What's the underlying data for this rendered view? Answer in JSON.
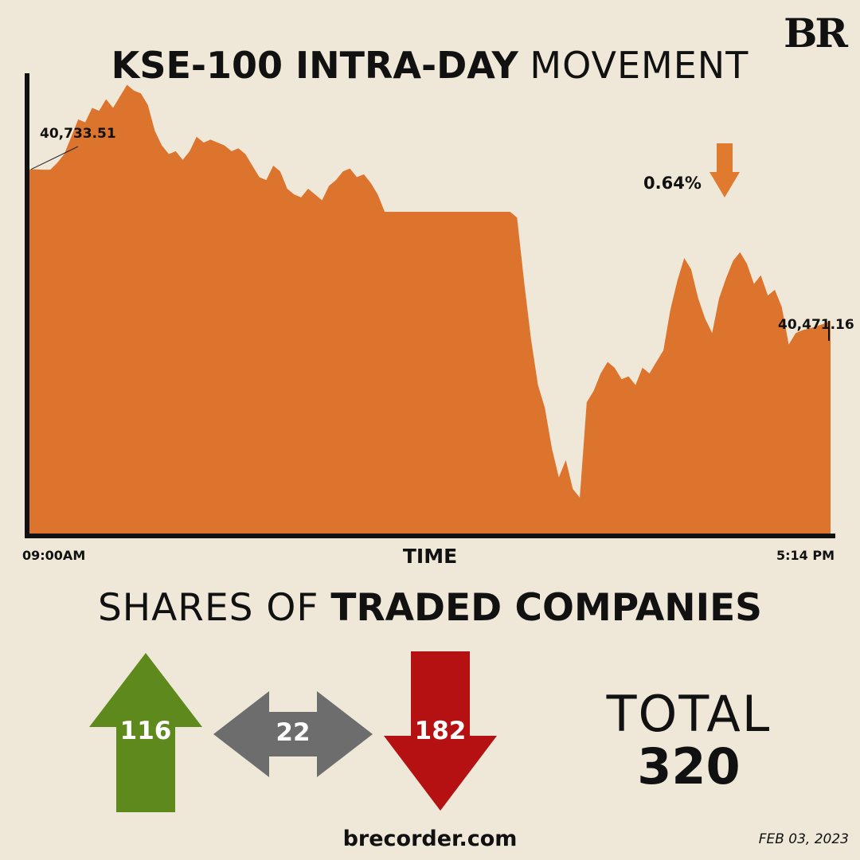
{
  "brand": {
    "logo": "BR"
  },
  "title": {
    "bold": "KSE-100 INTRA-DAY",
    "light": "MOVEMENT"
  },
  "change": {
    "text": "0.64%",
    "direction": "down",
    "color": "#e07a2f"
  },
  "chart_data": {
    "type": "area",
    "title": "KSE-100 INTRA-DAY MOVEMENT",
    "xlabel": "TIME",
    "ylabel": "",
    "x_start_label": "09:00AM",
    "x_end_label": "5:14 PM",
    "first_value": 40733.51,
    "first_value_label": "40,733.51",
    "last_value": 40471.16,
    "last_value_label": "40,471.16",
    "fill_color": "#dc742d",
    "ylim": [
      40100,
      40900
    ],
    "series": [
      {
        "values": [
          40733.51,
          40733.51,
          40733,
          40733,
          40745,
          40760,
          40790,
          40820,
          40815,
          40840,
          40835,
          40855,
          40840,
          40860,
          40880,
          40870,
          40865,
          40845,
          40800,
          40775,
          40760,
          40765,
          40750,
          40765,
          40790,
          40780,
          40785,
          40780,
          40775,
          40765,
          40770,
          40760,
          40740,
          40720,
          40715,
          40740,
          40730,
          40700,
          40690,
          40685,
          40700,
          40690,
          40680,
          40705,
          40715,
          40730,
          40735,
          40720,
          40725,
          40710,
          40690,
          40660,
          40660,
          40660,
          40660,
          40660,
          40660,
          40660,
          40660,
          40660,
          40660,
          40660,
          40660,
          40660,
          40660,
          40660,
          40660,
          40660,
          40660,
          40660,
          40650,
          40540,
          40440,
          40360,
          40320,
          40250,
          40200,
          40230,
          40180,
          40165,
          40330,
          40350,
          40380,
          40400,
          40390,
          40370,
          40375,
          40360,
          40390,
          40380,
          40400,
          40420,
          40490,
          40540,
          40580,
          40560,
          40510,
          40475,
          40450,
          40510,
          40545,
          40575,
          40590,
          40570,
          40535,
          40550,
          40515,
          40525,
          40495,
          40430,
          40450,
          40455,
          40458,
          40462,
          40466,
          40471.16
        ]
      }
    ]
  },
  "shares": {
    "title_light": "SHARES OF",
    "title_bold": "TRADED COMPANIES",
    "advanced": {
      "value": "116",
      "color": "#5e8a1d"
    },
    "unchanged": {
      "value": "22",
      "color": "#6d6d6d"
    },
    "declined": {
      "value": "182",
      "color": "#b51012"
    },
    "total_label": "TOTAL",
    "total_value": "320"
  },
  "footer": {
    "site": "brecorder.com",
    "date": "FEB 03, 2023"
  }
}
